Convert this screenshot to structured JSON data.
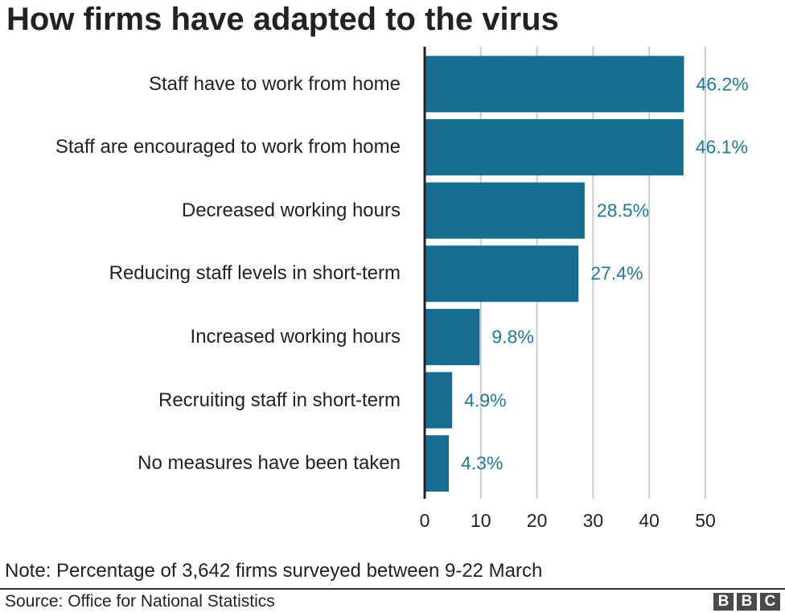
{
  "chart_data": {
    "type": "bar",
    "orientation": "horizontal",
    "title": "How firms have adapted to the virus",
    "categories": [
      "Staff have to work from home",
      "Staff are encouraged to work from home",
      "Decreased working hours",
      "Reducing staff levels in short-term",
      "Increased working hours",
      "Recruiting staff in short-term",
      "No measures have been taken"
    ],
    "values": [
      46.2,
      46.1,
      28.5,
      27.4,
      9.8,
      4.9,
      4.3
    ],
    "value_labels": [
      "46.2%",
      "46.1%",
      "28.5%",
      "27.4%",
      "9.8%",
      "4.9%",
      "4.3%"
    ],
    "xlim": [
      0,
      50
    ],
    "xticks": [
      "0",
      "10",
      "20",
      "30",
      "40",
      "50"
    ],
    "xlabel": "",
    "ylabel": "",
    "grid": true,
    "bar_color": "#176d8f",
    "label_color": "#1d7a9c"
  },
  "note": "Note: Percentage of 3,642 firms surveyed between 9-22 March",
  "source": "Source: Office for National Statistics",
  "logo": [
    "B",
    "B",
    "C"
  ]
}
